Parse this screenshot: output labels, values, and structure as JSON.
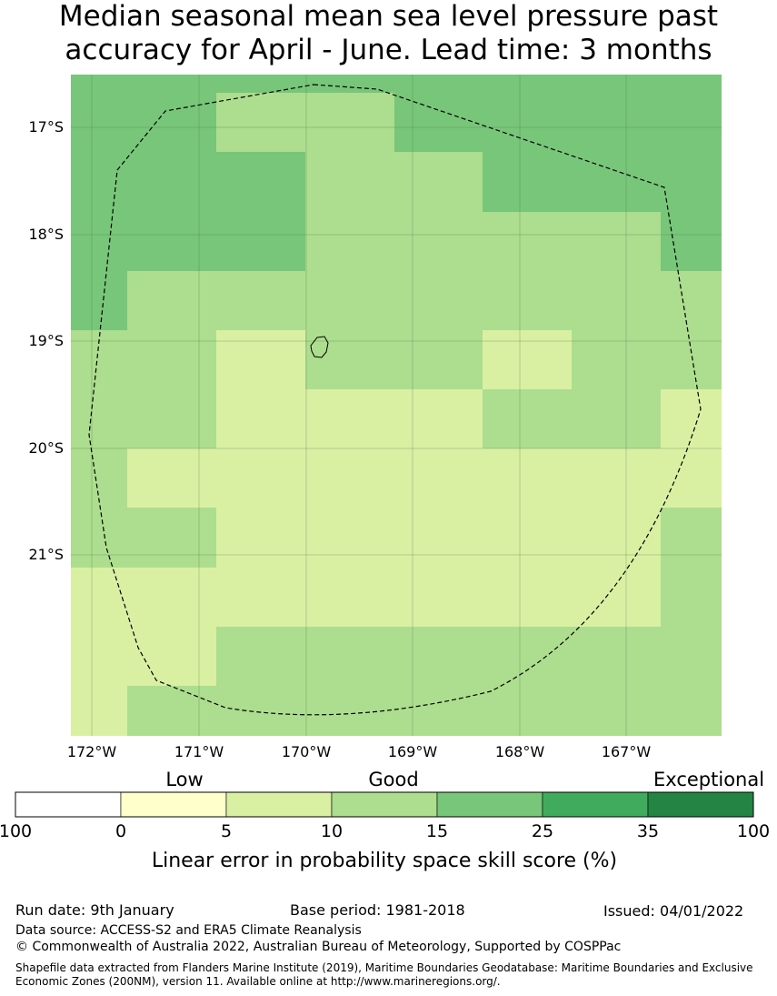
{
  "title": {
    "line1": "Median seasonal mean sea level pressure past",
    "line2": "accuracy for April - June. Lead time: 3 months"
  },
  "map": {
    "lat_labels": [
      "17°S",
      "18°S",
      "19°S",
      "20°S",
      "21°S"
    ],
    "lon_labels": [
      "172°W",
      "171°W",
      "170°W",
      "169°W",
      "168°W",
      "167°W"
    ],
    "extent": {
      "lon_west": -172.2,
      "lon_east": -166.1,
      "lat_north": -16.55,
      "lat_south": -22.75
    },
    "cell_size_deg": 0.5556,
    "color_scale": {
      "0-5": "#ffffcc",
      "5-10": "#d9f0a3",
      "10-15": "#addd8e",
      "15-25": "#78c679",
      "25-35": "#41ab5d",
      "35-100": "#238443"
    }
  },
  "legend": {
    "category_labels": [
      "Low",
      "Good",
      "Exceptional"
    ],
    "tick_labels": [
      "100",
      "0",
      "5",
      "10",
      "15",
      "25",
      "35",
      "100"
    ],
    "segment_colors": [
      "#ffffff",
      "#ffffcc",
      "#d9f0a3",
      "#addd8e",
      "#78c679",
      "#41ab5d",
      "#238443"
    ],
    "axis_label": "Linear error in probability space skill score (%)"
  },
  "footer": {
    "run_date": "Run date: 9th January",
    "base_period": "Base period: 1981-2018",
    "issued": "Issued: 04/01/2022",
    "data_source": "Data source: ACCESS-S2 and ERA5 Climate Reanalysis",
    "copyright": "© Commonwealth of Australia 2022, Australian Bureau of Meteorology, Supported by COSPPac",
    "shapefile": "Shapefile data extracted from Flanders Marine Institute (2019), Maritime Boundaries Geodatabase: Maritime Boundaries and Exclusive Economic Zones (200NM), version 11. Available online at http://www.marineregions.org/."
  }
}
